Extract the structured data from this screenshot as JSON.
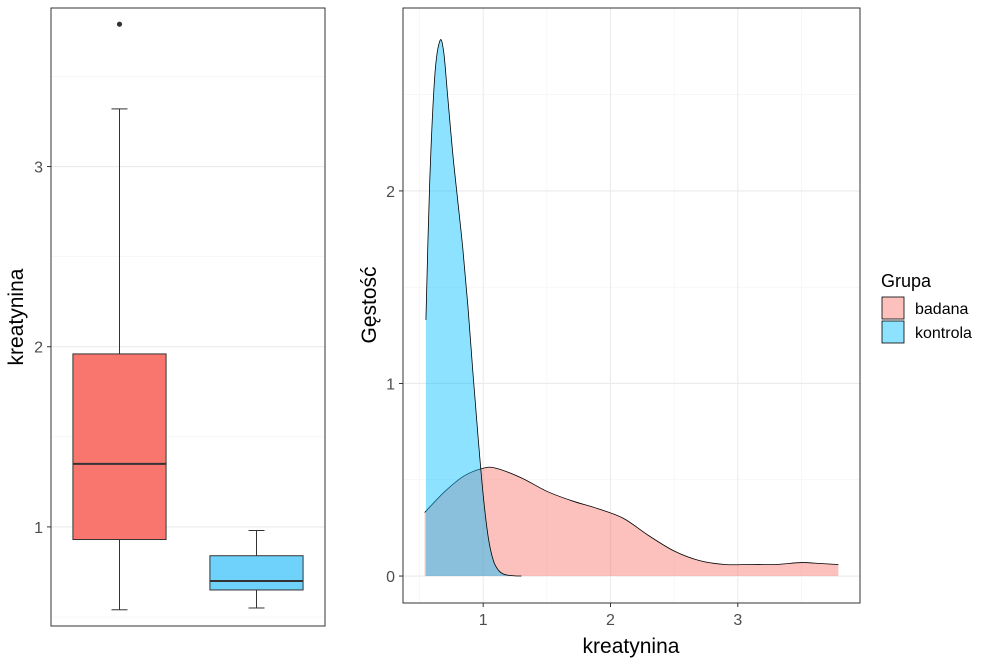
{
  "chart_data": [
    {
      "type": "boxplot",
      "xlabel": "",
      "ylabel": "kreatynina",
      "ylim": [
        0.45,
        3.88
      ],
      "yticks": [
        1,
        2,
        3
      ],
      "ytick_labels": [
        "1",
        "2",
        "3"
      ],
      "grid": true,
      "boxes": [
        {
          "group": "badana",
          "color": "#F8766D",
          "lower_whisker": 0.54,
          "q1": 0.93,
          "median": 1.35,
          "q3": 1.96,
          "upper_whisker": 3.32,
          "outliers": [
            3.79
          ]
        },
        {
          "group": "kontrola",
          "color": "#00BFFF",
          "lower_whisker": 0.55,
          "q1": 0.65,
          "median": 0.7,
          "q3": 0.84,
          "upper_whisker": 0.98,
          "outliers": []
        }
      ]
    },
    {
      "type": "density",
      "xlabel": "kreatynina",
      "ylabel": "Gęstość",
      "xlim": [
        0.37,
        3.96
      ],
      "ylim": [
        -0.14,
        2.95
      ],
      "xticks": [
        1,
        2,
        3
      ],
      "xtick_labels": [
        "1",
        "2",
        "3"
      ],
      "yticks": [
        0,
        1,
        2
      ],
      "ytick_labels": [
        "0",
        "1",
        "2"
      ],
      "grid": true,
      "legend": {
        "title": "Grupa",
        "position": "right",
        "entries": [
          {
            "label": "badana",
            "color": "#F8766D"
          },
          {
            "label": "kontrola",
            "color": "#00BFFF"
          }
        ]
      },
      "series": [
        {
          "name": "badana",
          "color": "#F8766D",
          "x": [
            0.54,
            0.7,
            0.85,
            1.0,
            1.1,
            1.3,
            1.5,
            1.7,
            1.9,
            2.1,
            2.3,
            2.5,
            2.7,
            2.9,
            3.1,
            3.3,
            3.5,
            3.65,
            3.79
          ],
          "y": [
            0.33,
            0.44,
            0.52,
            0.56,
            0.56,
            0.51,
            0.44,
            0.39,
            0.35,
            0.3,
            0.21,
            0.13,
            0.08,
            0.06,
            0.06,
            0.06,
            0.07,
            0.065,
            0.06
          ]
        },
        {
          "name": "kontrola",
          "color": "#00BFFF",
          "x": [
            0.55,
            0.58,
            0.62,
            0.66,
            0.69,
            0.72,
            0.76,
            0.8,
            0.84,
            0.88,
            0.92,
            0.96,
            1.0,
            1.04,
            1.08,
            1.12,
            1.16,
            1.2,
            1.25,
            1.3
          ],
          "y": [
            1.33,
            2.05,
            2.6,
            2.78,
            2.72,
            2.5,
            2.2,
            1.95,
            1.7,
            1.4,
            1.05,
            0.72,
            0.42,
            0.2,
            0.08,
            0.03,
            0.01,
            0.004,
            0.001,
            0.0
          ]
        }
      ]
    }
  ]
}
